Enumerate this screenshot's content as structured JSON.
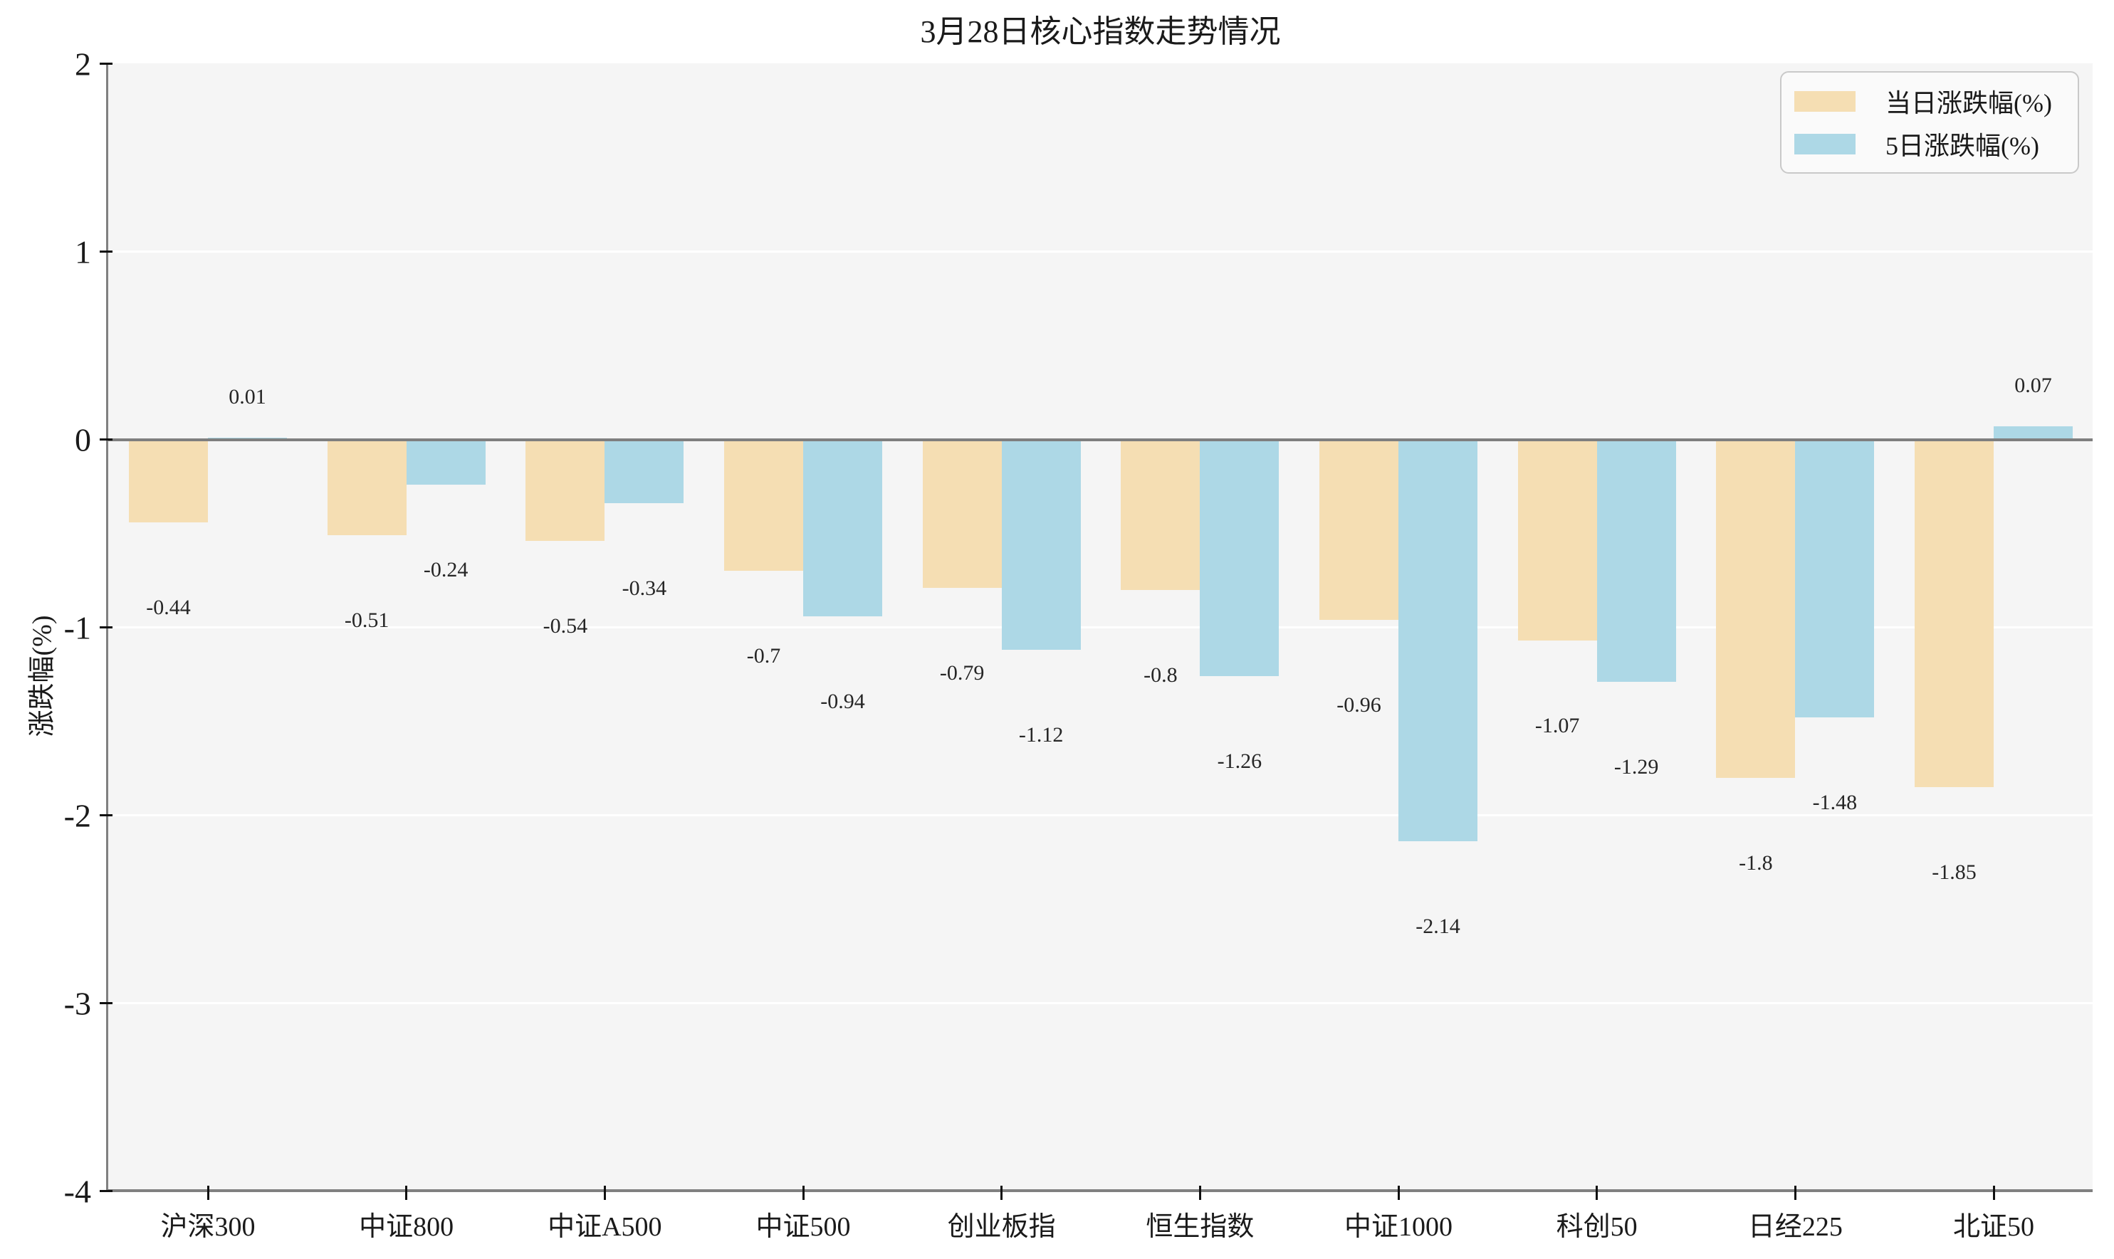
{
  "chart_data": {
    "type": "bar",
    "title": "3月28日核心指数走势情况",
    "ylabel": "涨跌幅(%)",
    "xlabel": "",
    "categories": [
      "沪深300",
      "中证800",
      "中证A500",
      "中证500",
      "创业板指",
      "恒生指数",
      "中证1000",
      "科创50",
      "日经225",
      "北证50"
    ],
    "series": [
      {
        "name": "当日涨跌幅(%)",
        "color": "#F5DEB3",
        "values": [
          -0.44,
          -0.51,
          -0.54,
          -0.7,
          -0.79,
          -0.8,
          -0.96,
          -1.07,
          -1.8,
          -1.85
        ],
        "labels": [
          "-0.44",
          "-0.51",
          "-0.54",
          "-0.7",
          "-0.79",
          "-0.8",
          "-0.96",
          "-1.07",
          "-1.8",
          "-1.85"
        ]
      },
      {
        "name": "5日涨跌幅(%)",
        "color": "#ADD8E6",
        "values": [
          0.01,
          -0.24,
          -0.34,
          -0.94,
          -1.12,
          -1.26,
          -2.14,
          -1.29,
          -1.48,
          0.07
        ],
        "labels": [
          "0.01",
          "-0.24",
          "-0.34",
          "-0.94",
          "-1.12",
          "-1.26",
          "-2.14",
          "-1.29",
          "-1.48",
          "0.07"
        ]
      }
    ],
    "ylim": [
      -4,
      2
    ],
    "yticks": [
      2,
      1,
      0,
      -1,
      -2,
      -3,
      -4
    ],
    "ytick_labels": [
      "2",
      "1",
      "0",
      "-1",
      "-2",
      "-3",
      "-4"
    ],
    "grid": true,
    "legend_position": "upper right",
    "colors": {
      "plot_background": "#f5f5f5",
      "page_background": "#ffffff",
      "gridline": "#ffffff",
      "zero_line": "#7f7f7f",
      "spine": "#808080",
      "text": "#1a1a1a"
    }
  }
}
